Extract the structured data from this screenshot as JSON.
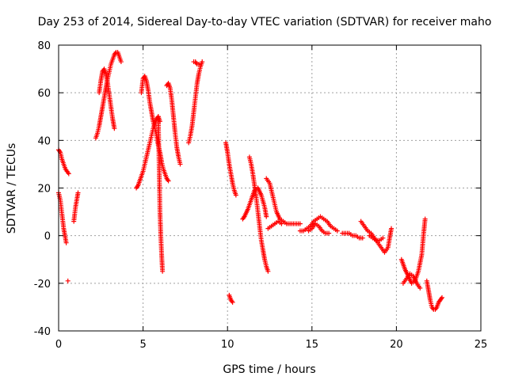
{
  "chart_data": {
    "type": "scatter",
    "title": "Day 253 of 2014, Sidereal Day-to-day VTEC variation (SDTVAR) for receiver maho",
    "xlabel": "GPS time / hours",
    "ylabel": "SDTVAR / TECUs",
    "xlim": [
      0,
      25
    ],
    "ylim": [
      -40,
      80
    ],
    "xticks": [
      "0",
      "5",
      "10",
      "15",
      "20",
      "25"
    ],
    "yticks": [
      "-40",
      "-20",
      "0",
      "20",
      "40",
      "60",
      "80"
    ],
    "grid": true,
    "marker": "+",
    "color": "#ff0000",
    "series": [
      {
        "name": "seg1",
        "x": [
          0.0,
          0.1,
          0.2,
          0.3,
          0.4,
          0.5,
          0.6
        ],
        "y": [
          36,
          35,
          32,
          30,
          28,
          27,
          26
        ]
      },
      {
        "name": "seg2",
        "x": [
          0.0,
          0.1,
          0.15,
          0.2,
          0.25,
          0.3,
          0.35,
          0.4,
          0.45
        ],
        "y": [
          18,
          15,
          12,
          9,
          6,
          3,
          1,
          -1,
          -3
        ]
      },
      {
        "name": "seg3",
        "x": [
          0.55
        ],
        "y": [
          -19
        ]
      },
      {
        "name": "seg4",
        "x": [
          0.9,
          0.95,
          1.0,
          1.05,
          1.1,
          1.15
        ],
        "y": [
          6,
          9,
          12,
          14,
          16,
          18
        ]
      },
      {
        "name": "seg5",
        "x": [
          2.2,
          2.3,
          2.4,
          2.5,
          2.6,
          2.7,
          2.8,
          2.9,
          3.0,
          3.1,
          3.2,
          3.3,
          3.4,
          3.5,
          3.6,
          3.7
        ],
        "y": [
          41,
          43,
          46,
          50,
          54,
          58,
          62,
          66,
          69,
          72,
          74,
          76,
          77,
          77,
          75,
          73
        ]
      },
      {
        "name": "seg6",
        "x": [
          2.4,
          2.5,
          2.6,
          2.7,
          2.8,
          2.9,
          3.0,
          3.1,
          3.2,
          3.3
        ],
        "y": [
          60,
          65,
          69,
          70,
          68,
          64,
          59,
          54,
          49,
          45
        ]
      },
      {
        "name": "seg7",
        "x": [
          4.6,
          4.7,
          4.8,
          4.9,
          5.0,
          5.1,
          5.2,
          5.3,
          5.4,
          5.5,
          5.6,
          5.7,
          5.8,
          5.9,
          6.0
        ],
        "y": [
          20,
          21,
          23,
          25,
          27,
          30,
          33,
          36,
          39,
          42,
          45,
          47,
          49,
          50,
          48
        ]
      },
      {
        "name": "seg8",
        "x": [
          4.9,
          5.0,
          5.1,
          5.2,
          5.3,
          5.4,
          5.5,
          5.6,
          5.7,
          5.8,
          5.9,
          6.0,
          6.1,
          6.2,
          6.3,
          6.4,
          6.5
        ],
        "y": [
          60,
          66,
          67,
          65,
          61,
          56,
          52,
          48,
          45,
          42,
          38,
          35,
          31,
          28,
          26,
          24,
          23
        ]
      },
      {
        "name": "seg9",
        "x": [
          5.9,
          5.95,
          6.0,
          6.05,
          6.1,
          6.15
        ],
        "y": [
          50,
          30,
          10,
          0,
          -8,
          -15
        ]
      },
      {
        "name": "seg10",
        "x": [
          6.4,
          6.5,
          6.6,
          6.7,
          6.8,
          6.9,
          7.0,
          7.1,
          7.2
        ],
        "y": [
          63,
          64,
          62,
          57,
          50,
          43,
          37,
          33,
          30
        ]
      },
      {
        "name": "seg11",
        "x": [
          7.7,
          7.8,
          7.9,
          8.0,
          8.1,
          8.2,
          8.3,
          8.4,
          8.5
        ],
        "y": [
          39,
          42,
          46,
          52,
          58,
          64,
          68,
          71,
          73
        ]
      },
      {
        "name": "seg12",
        "x": [
          8.0,
          8.1,
          8.2,
          8.3
        ],
        "y": [
          73,
          73,
          72,
          72
        ]
      },
      {
        "name": "seg13",
        "x": [
          9.9,
          10.0,
          10.1,
          10.2,
          10.3,
          10.4,
          10.5
        ],
        "y": [
          39,
          35,
          30,
          26,
          22,
          19,
          17
        ]
      },
      {
        "name": "seg14",
        "x": [
          10.1,
          10.2,
          10.3
        ],
        "y": [
          -25,
          -27,
          -28
        ]
      },
      {
        "name": "seg15",
        "x": [
          10.9,
          11.0,
          11.2,
          11.4,
          11.6,
          11.8,
          12.0,
          12.2,
          12.3
        ],
        "y": [
          7,
          8,
          11,
          15,
          19,
          20,
          17,
          12,
          8
        ]
      },
      {
        "name": "seg16",
        "x": [
          11.3,
          11.4,
          11.5,
          11.6,
          11.7,
          11.8,
          11.9,
          12.0,
          12.1,
          12.2,
          12.3,
          12.4
        ],
        "y": [
          33,
          30,
          26,
          21,
          16,
          10,
          4,
          -2,
          -6,
          -10,
          -13,
          -15
        ]
      },
      {
        "name": "seg17",
        "x": [
          12.3,
          12.5,
          12.7,
          12.9,
          13.1,
          13.3,
          13.5,
          13.7,
          13.9,
          14.1,
          14.3
        ],
        "y": [
          24,
          22,
          16,
          10,
          7,
          6,
          5,
          5,
          5,
          5,
          5
        ]
      },
      {
        "name": "seg18",
        "x": [
          12.4,
          12.6,
          12.8,
          13.0,
          13.2
        ],
        "y": [
          3,
          4,
          5,
          6,
          5
        ]
      },
      {
        "name": "seg19",
        "x": [
          14.3,
          14.5,
          14.7,
          14.9,
          15.1,
          15.3,
          15.5,
          15.7,
          15.9,
          16.1,
          16.3,
          16.5
        ],
        "y": [
          2,
          2,
          3,
          4,
          6,
          7,
          8,
          7,
          6,
          4,
          3,
          2
        ]
      },
      {
        "name": "seg20",
        "x": [
          14.8,
          15.0,
          15.2,
          15.4,
          15.6,
          15.8,
          16.0
        ],
        "y": [
          2,
          3,
          5,
          4,
          2,
          1,
          1
        ]
      },
      {
        "name": "seg21",
        "x": [
          16.8,
          17.0,
          17.2,
          17.4,
          17.6,
          17.8,
          18.0
        ],
        "y": [
          1,
          1,
          1,
          0,
          0,
          -1,
          -1
        ]
      },
      {
        "name": "seg22",
        "x": [
          17.9,
          18.1,
          18.3,
          18.5,
          18.7,
          18.9,
          19.1,
          19.3,
          19.5,
          19.6,
          19.7
        ],
        "y": [
          6,
          4,
          2,
          1,
          -1,
          -3,
          -5,
          -7,
          -5,
          -1,
          3
        ]
      },
      {
        "name": "seg23",
        "x": [
          18.4,
          18.6,
          18.8,
          19.0,
          19.2
        ],
        "y": [
          0,
          -1,
          -2,
          -2,
          -1
        ]
      },
      {
        "name": "seg24",
        "x": [
          20.3,
          20.5,
          20.7,
          20.9,
          21.1,
          21.3,
          21.5,
          21.6,
          21.7
        ],
        "y": [
          -10,
          -14,
          -17,
          -20,
          -19,
          -15,
          -8,
          0,
          7
        ]
      },
      {
        "name": "seg25",
        "x": [
          20.4,
          20.6,
          20.8,
          21.0,
          21.2,
          21.4
        ],
        "y": [
          -20,
          -18,
          -16,
          -17,
          -20,
          -22
        ]
      },
      {
        "name": "seg26",
        "x": [
          21.8,
          21.9,
          22.0,
          22.1,
          22.2,
          22.3,
          22.4,
          22.5,
          22.6,
          22.7
        ],
        "y": [
          -19,
          -23,
          -27,
          -30,
          -31,
          -31,
          -30,
          -28,
          -27,
          -26
        ]
      }
    ]
  }
}
